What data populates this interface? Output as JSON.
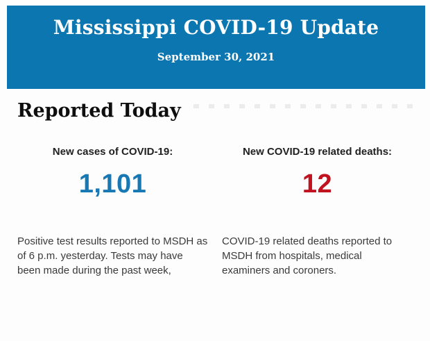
{
  "banner": {
    "title": "Mississippi COVID-19 Update",
    "date": "September 30, 2021",
    "bg_color": "#0b76af",
    "text_color": "#fefefe"
  },
  "section": {
    "heading": "Reported Today"
  },
  "stats": [
    {
      "label": "New cases of COVID-19:",
      "value": "1,101",
      "value_color": "#1878b4",
      "description": "Positive test results reported to MSDH as of 6 p.m. yesterday. Tests may have been made during the past week,"
    },
    {
      "label": "New COVID-19 related deaths:",
      "value": "12",
      "value_color": "#c0121f",
      "description": "COVID-19 related deaths reported to MSDH from hospitals, medical examiners and coroners."
    }
  ]
}
